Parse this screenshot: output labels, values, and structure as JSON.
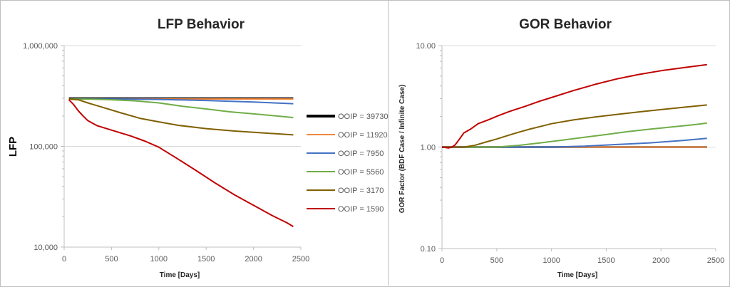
{
  "chart_data": [
    {
      "type": "line",
      "title": "LFP Behavior",
      "xlabel": "Time [Days]",
      "ylabel": "LFP",
      "xlim": [
        0,
        2500
      ],
      "ylim": [
        10000,
        1000000
      ],
      "yscale": "log",
      "xticks": [
        "0",
        "500",
        "1000",
        "1500",
        "2000",
        "2500"
      ],
      "yticks": [
        "10,000",
        "100,000",
        "1,000,000"
      ],
      "grid": "horizontal",
      "legend": "right",
      "series": [
        {
          "name": "OOIP = 39730",
          "color": "#000000",
          "x": [
            50,
            500,
            1000,
            1500,
            2000,
            2420
          ],
          "y": [
            300000,
            300000,
            300000,
            300000,
            300000,
            300000
          ]
        },
        {
          "name": "OOIP = 11920",
          "color": "#f4883c",
          "x": [
            50,
            500,
            1000,
            1500,
            2000,
            2420
          ],
          "y": [
            295000,
            295000,
            295000,
            295000,
            295000,
            295000
          ]
        },
        {
          "name": "OOIP = 7950",
          "color": "#4472c4",
          "x": [
            50,
            500,
            1000,
            1500,
            2000,
            2420
          ],
          "y": [
            295000,
            295000,
            292000,
            285000,
            275000,
            265000
          ]
        },
        {
          "name": "OOIP = 5560",
          "color": "#70ad47",
          "x": [
            50,
            300,
            500,
            750,
            1000,
            1250,
            1500,
            1750,
            2000,
            2250,
            2420
          ],
          "y": [
            295000,
            294000,
            290000,
            283000,
            270000,
            250000,
            235000,
            220000,
            210000,
            200000,
            193000
          ]
        },
        {
          "name": "OOIP = 3170",
          "color": "#806000",
          "x": [
            50,
            150,
            250,
            400,
            600,
            800,
            1000,
            1200,
            1500,
            1800,
            2100,
            2420
          ],
          "y": [
            295000,
            290000,
            270000,
            245000,
            215000,
            190000,
            175000,
            162000,
            150000,
            142000,
            136000,
            130000
          ]
        },
        {
          "name": "OOIP = 1590",
          "color": "#c00000",
          "x": [
            50,
            100,
            150,
            200,
            250,
            350,
            500,
            700,
            850,
            1000,
            1200,
            1400,
            1600,
            1800,
            2000,
            2200,
            2350,
            2420
          ],
          "y": [
            290000,
            260000,
            225000,
            200000,
            180000,
            160000,
            145000,
            127000,
            113000,
            98000,
            75000,
            57000,
            43000,
            33000,
            26000,
            20500,
            17500,
            16000
          ]
        }
      ]
    },
    {
      "type": "line",
      "title": "GOR Behavior",
      "xlabel": "Time [Days]",
      "ylabel": "GOR Factor (BDF Case / Infinite Case)",
      "xlim": [
        0,
        2500
      ],
      "ylim": [
        0.1,
        10
      ],
      "yscale": "log",
      "xticks": [
        "0",
        "500",
        "1000",
        "1500",
        "2000",
        "2500"
      ],
      "yticks": [
        "0.10",
        "1.00",
        "10.00"
      ],
      "grid": "horizontal",
      "series": [
        {
          "color": "#000000",
          "x": [
            0,
            500,
            1000,
            1500,
            2000,
            2420
          ],
          "y": [
            1.0,
            1.0,
            1.0,
            1.0,
            1.0,
            1.0
          ]
        },
        {
          "color": "#f4883c",
          "x": [
            0,
            500,
            1000,
            1500,
            2000,
            2420
          ],
          "y": [
            1.0,
            1.0,
            1.0,
            1.0,
            1.0,
            1.0
          ]
        },
        {
          "color": "#4472c4",
          "x": [
            0,
            500,
            1000,
            1300,
            1600,
            1900,
            2200,
            2420
          ],
          "y": [
            1.0,
            1.0,
            1.0,
            1.02,
            1.06,
            1.1,
            1.16,
            1.22
          ]
        },
        {
          "color": "#70ad47",
          "x": [
            0,
            300,
            500,
            700,
            900,
            1100,
            1300,
            1500,
            1700,
            1900,
            2100,
            2300,
            2420
          ],
          "y": [
            1.0,
            1.0,
            1.0,
            1.04,
            1.1,
            1.17,
            1.25,
            1.33,
            1.42,
            1.5,
            1.58,
            1.66,
            1.72
          ]
        },
        {
          "color": "#806000",
          "x": [
            0,
            200,
            300,
            400,
            500,
            600,
            700,
            800,
            1000,
            1200,
            1400,
            1600,
            1800,
            2000,
            2200,
            2420
          ],
          "y": [
            1.0,
            1.0,
            1.04,
            1.12,
            1.2,
            1.3,
            1.4,
            1.5,
            1.7,
            1.85,
            1.98,
            2.1,
            2.22,
            2.34,
            2.46,
            2.6
          ]
        },
        {
          "color": "#c00000",
          "x": [
            0,
            60,
            90,
            120,
            160,
            200,
            260,
            330,
            420,
            520,
            620,
            750,
            900,
            1050,
            1200,
            1400,
            1600,
            1800,
            2000,
            2200,
            2420
          ],
          "y": [
            1.0,
            0.98,
            1.0,
            1.05,
            1.2,
            1.38,
            1.5,
            1.7,
            1.85,
            2.05,
            2.25,
            2.5,
            2.85,
            3.2,
            3.6,
            4.15,
            4.7,
            5.2,
            5.65,
            6.05,
            6.5
          ]
        }
      ]
    }
  ]
}
